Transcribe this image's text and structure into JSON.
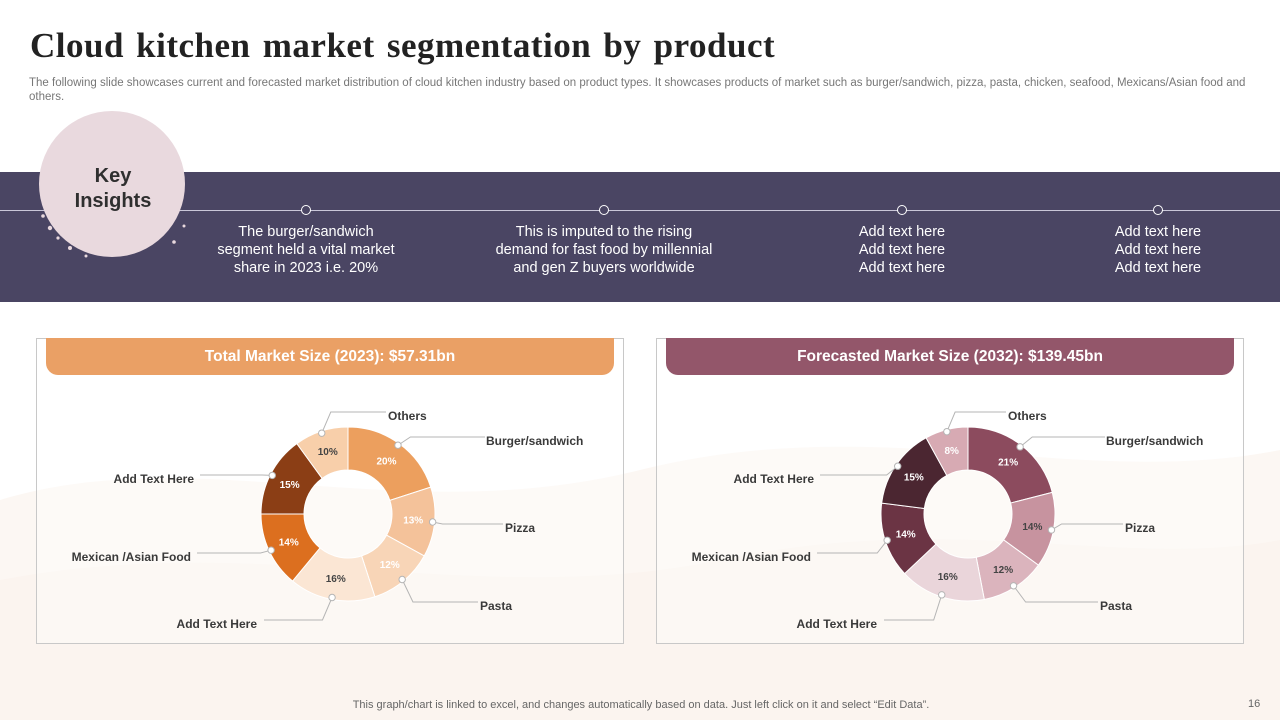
{
  "header": {
    "title": "Cloud kitchen market segmentation by product",
    "subtitle": "The following slide showcases current and forecasted market distribution of cloud kitchen industry based on product types. It showcases products of market such as burger/sandwich, pizza, pasta, chicken, seafood, Mexicans/Asian food and others."
  },
  "key_insights": {
    "title": "Key\nInsights",
    "items": [
      {
        "text": "The burger/sandwich\nsegment held a vital market\nshare in 2023 i.e. 20%"
      },
      {
        "text": "This is imputed to the rising\ndemand for fast food by millennial\nand gen Z buyers worldwide"
      },
      {
        "text": "Add text here\nAdd text here\nAdd text here"
      },
      {
        "text": "Add text here\nAdd text here\nAdd text here"
      }
    ]
  },
  "colors": {
    "band": "#4a4563",
    "header_2023": "#eaa065",
    "header_2032": "#93566a"
  },
  "chart_data": [
    {
      "type": "pie",
      "variant": "donut",
      "title": "Total Market Size (2023): $57.31bn",
      "categories": [
        "Burger/sandwich",
        "Pizza",
        "Pasta",
        "Add Text Here",
        "Mexican /Asian Food",
        "Add Text Here",
        "Others"
      ],
      "values": [
        20,
        13,
        12,
        16,
        14,
        15,
        10
      ],
      "value_labels": [
        "20%",
        "13%",
        "12%",
        "16%",
        "14%",
        "15%",
        "10%"
      ],
      "colors": [
        "#ec9f5e",
        "#f4c29a",
        "#f8d5b7",
        "#fbe6d4",
        "#dc6f1f",
        "#8b3e15",
        "#f8cfaa"
      ],
      "value_text_colors": [
        "#ffffff",
        "#ffffff",
        "#ffffff",
        "#444444",
        "#ffffff",
        "#ffffff",
        "#444444"
      ]
    },
    {
      "type": "pie",
      "variant": "donut",
      "title": "Forecasted Market Size (2032): $139.45bn",
      "categories": [
        "Burger/sandwich",
        "Pizza",
        "Pasta",
        "Add Text Here",
        "Mexican /Asian Food",
        "Add Text Here",
        "Others"
      ],
      "values": [
        21,
        14,
        12,
        16,
        14,
        15,
        8
      ],
      "value_labels": [
        "21%",
        "14%",
        "12%",
        "16%",
        "14%",
        "15%",
        "8%"
      ],
      "colors": [
        "#8c4b5e",
        "#c7939f",
        "#dbb4bd",
        "#ead5da",
        "#6b3444",
        "#4b2631",
        "#d7aab3"
      ],
      "value_text_colors": [
        "#ffffff",
        "#444444",
        "#444444",
        "#444444",
        "#ffffff",
        "#ffffff",
        "#ffffff"
      ]
    }
  ],
  "footer": {
    "note": "This graph/chart is linked to excel, and changes automatically based on data. Just left click on it and select “Edit Data”.",
    "page": "16"
  }
}
